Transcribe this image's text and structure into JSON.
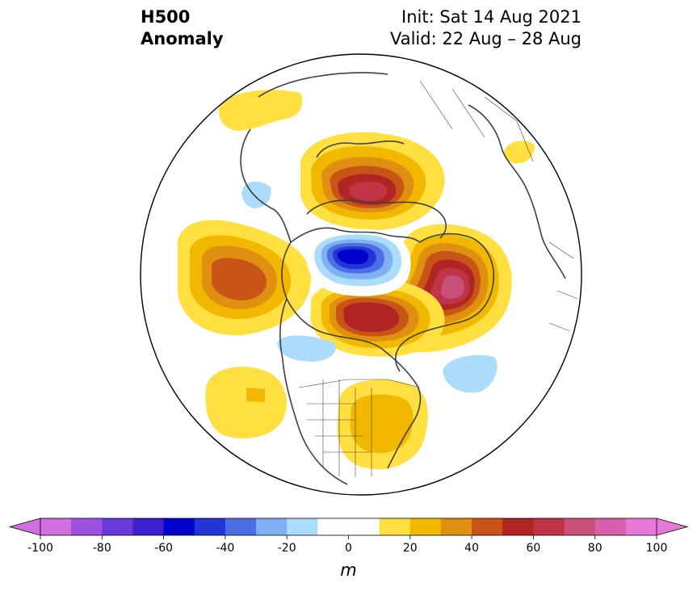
{
  "title": {
    "left_line1": "H500",
    "left_line2": "Anomaly",
    "right_line1": "Init: Sat 14 Aug 2021",
    "right_line2": "Valid: 22 Aug – 28 Aug"
  },
  "colorbar": {
    "unit": "m",
    "tick_labels": [
      "-100",
      "-80",
      "-60",
      "-40",
      "-20",
      "0",
      "20",
      "40",
      "60",
      "80",
      "100"
    ],
    "levels": [
      -100,
      -90,
      -80,
      -70,
      -60,
      -50,
      -40,
      -30,
      -20,
      -10,
      10,
      20,
      30,
      40,
      50,
      60,
      70,
      80,
      90,
      100
    ],
    "colors": [
      "#d070e0",
      "#9e50e0",
      "#6a3ad8",
      "#3c20d0",
      "#0000cc",
      "#2236d8",
      "#4c6ee4",
      "#7eb0f2",
      "#acdcfc",
      "#ffffff",
      "#ffe040",
      "#f2b800",
      "#e09010",
      "#c85418",
      "#b02424",
      "#c03448",
      "#c8507a",
      "#d860a8",
      "#e878d8"
    ],
    "extend_low_color": "#d070e0",
    "extend_high_color": "#e878d8"
  }
}
